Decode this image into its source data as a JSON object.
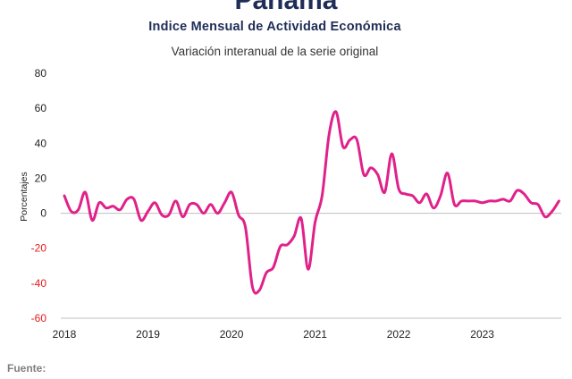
{
  "header": {
    "title": "Panamá",
    "subtitle": "Indice Mensual de  Actividad Económica",
    "subsubtitle": "Variación interanual de la serie original"
  },
  "footer": {
    "source_label": "Fuente:"
  },
  "colors": {
    "series": "#e0218a",
    "axis": "#bfbfbf",
    "negative_tick": "#e8191b",
    "tick": "#222222"
  },
  "chart_data": {
    "type": "line",
    "title": "Indice Mensual de  Actividad Económica",
    "subtitle": "Variación interanual de la serie original",
    "xlabel": "",
    "ylabel": "Porcentajes",
    "ylim": [
      -60,
      80
    ],
    "yticks": [
      80,
      60,
      40,
      20,
      0,
      -20,
      -40,
      -60
    ],
    "xticks": [
      "2018",
      "2019",
      "2020",
      "2021",
      "2022",
      "2023"
    ],
    "grid": false,
    "series": [
      {
        "values": [
          10,
          1,
          2,
          12,
          -4,
          6,
          3,
          4,
          2,
          8,
          8,
          -4,
          1,
          6,
          -1,
          -1,
          7,
          -2,
          5,
          5,
          0,
          5,
          0,
          6,
          12,
          -1,
          -8,
          -42,
          -44,
          -34,
          -31,
          -19,
          -18,
          -13,
          -3,
          -32,
          -5,
          10,
          45,
          58,
          38,
          42,
          42,
          22,
          26,
          22,
          12,
          34,
          14,
          11,
          10,
          6,
          11,
          3,
          10,
          23,
          5,
          7,
          7,
          7,
          6,
          7,
          7,
          8,
          7,
          13,
          11,
          6,
          5,
          -2,
          1,
          7
        ]
      }
    ]
  }
}
